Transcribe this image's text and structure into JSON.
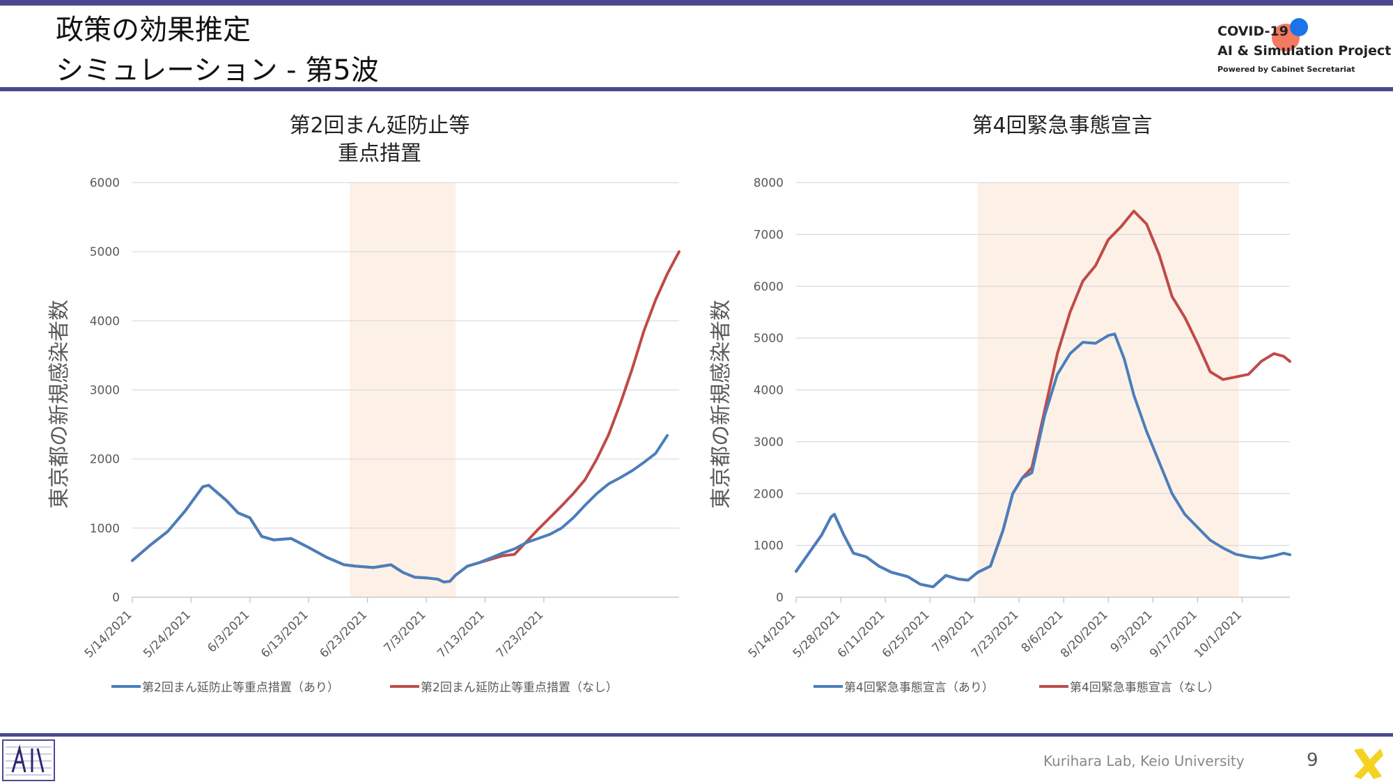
{
  "page": {
    "title_line1": "政策の効果推定",
    "title_line2": "シミュレーション - 第5波",
    "brand_line1": "COVID-19",
    "brand_line2": "AI & Simulation Project",
    "brand_line3": "Powered by Cabinet Secretariat",
    "footer": "Kurihara Lab, Keio University",
    "page_number": "9",
    "colors": {
      "accent_bar": "#4a4890",
      "with": "#4a7ebb",
      "without": "#be4b48",
      "highlight": "#fdf0e6"
    }
  },
  "chart_data": [
    {
      "type": "line",
      "title": [
        "第2回まん延防止等",
        "重点措置"
      ],
      "ylabel": "東京都の新規感染者数",
      "ylim": [
        0,
        6000
      ],
      "yticks": [
        0,
        1000,
        2000,
        3000,
        4000,
        5000,
        6000
      ],
      "x_start": "5/14/2021",
      "x_ticks": [
        "5/14/2021",
        "5/24/2021",
        "6/3/2021",
        "6/13/2021",
        "6/23/2021",
        "7/3/2021",
        "7/13/2021",
        "7/23/2021"
      ],
      "highlight": [
        "6/20/2021",
        "7/8/2021"
      ],
      "grid": true,
      "legend": "bottom",
      "series": [
        {
          "name": "第2回まん延防止等重点措置（あり）",
          "color": "#4a7ebb",
          "points": [
            [
              "5/14/2021",
              530
            ],
            [
              "5/17/2021",
              750
            ],
            [
              "5/20/2021",
              950
            ],
            [
              "5/23/2021",
              1250
            ],
            [
              "5/26/2021",
              1600
            ],
            [
              "5/27/2021",
              1620
            ],
            [
              "5/30/2021",
              1400
            ],
            [
              "6/1/2021",
              1220
            ],
            [
              "6/3/2021",
              1150
            ],
            [
              "6/5/2021",
              880
            ],
            [
              "6/7/2021",
              830
            ],
            [
              "6/10/2021",
              850
            ],
            [
              "6/13/2021",
              720
            ],
            [
              "6/16/2021",
              580
            ],
            [
              "6/19/2021",
              470
            ],
            [
              "6/21/2021",
              450
            ],
            [
              "6/24/2021",
              430
            ],
            [
              "6/27/2021",
              470
            ],
            [
              "6/29/2021",
              360
            ],
            [
              "7/1/2021",
              290
            ],
            [
              "7/3/2021",
              280
            ],
            [
              "7/5/2021",
              260
            ],
            [
              "7/6/2021",
              220
            ],
            [
              "7/7/2021",
              230
            ],
            [
              "7/8/2021",
              320
            ],
            [
              "7/10/2021",
              450
            ],
            [
              "7/12/2021",
              500
            ],
            [
              "7/14/2021",
              570
            ],
            [
              "7/16/2021",
              640
            ],
            [
              "7/18/2021",
              700
            ],
            [
              "7/20/2021",
              790
            ],
            [
              "7/22/2021",
              850
            ],
            [
              "7/24/2021",
              910
            ],
            [
              "7/26/2021",
              1000
            ],
            [
              "7/28/2021",
              1150
            ],
            [
              "7/30/2021",
              1330
            ],
            [
              "8/1/2021",
              1500
            ],
            [
              "8/3/2021",
              1640
            ],
            [
              "8/5/2021",
              1730
            ],
            [
              "8/7/2021",
              1830
            ],
            [
              "8/9/2021",
              1950
            ],
            [
              "8/11/2021",
              2080
            ],
            [
              "8/13/2021",
              2340
            ]
          ]
        },
        {
          "name": "第2回まん延防止等重点措置（なし）",
          "color": "#be4b48",
          "points": [
            [
              "5/14/2021",
              530
            ],
            [
              "5/17/2021",
              750
            ],
            [
              "5/20/2021",
              950
            ],
            [
              "5/23/2021",
              1250
            ],
            [
              "5/26/2021",
              1600
            ],
            [
              "5/27/2021",
              1620
            ],
            [
              "5/30/2021",
              1400
            ],
            [
              "6/1/2021",
              1220
            ],
            [
              "6/3/2021",
              1150
            ],
            [
              "6/5/2021",
              880
            ],
            [
              "6/7/2021",
              830
            ],
            [
              "6/10/2021",
              850
            ],
            [
              "6/13/2021",
              720
            ],
            [
              "6/16/2021",
              580
            ],
            [
              "6/19/2021",
              470
            ],
            [
              "6/21/2021",
              450
            ],
            [
              "6/24/2021",
              430
            ],
            [
              "6/27/2021",
              470
            ],
            [
              "6/29/2021",
              360
            ],
            [
              "7/1/2021",
              290
            ],
            [
              "7/3/2021",
              280
            ],
            [
              "7/5/2021",
              260
            ],
            [
              "7/6/2021",
              220
            ],
            [
              "7/7/2021",
              230
            ],
            [
              "7/8/2021",
              320
            ],
            [
              "7/10/2021",
              450
            ],
            [
              "7/12/2021",
              500
            ],
            [
              "7/14/2021",
              550
            ],
            [
              "7/16/2021",
              600
            ],
            [
              "7/18/2021",
              620
            ],
            [
              "7/20/2021",
              800
            ],
            [
              "7/22/2021",
              980
            ],
            [
              "7/24/2021",
              1150
            ],
            [
              "7/26/2021",
              1320
            ],
            [
              "7/28/2021",
              1500
            ],
            [
              "7/30/2021",
              1700
            ],
            [
              "8/1/2021",
              2000
            ],
            [
              "8/3/2021",
              2350
            ],
            [
              "8/5/2021",
              2800
            ],
            [
              "8/7/2021",
              3300
            ],
            [
              "8/9/2021",
              3850
            ],
            [
              "8/11/2021",
              4300
            ],
            [
              "8/13/2021",
              4680
            ],
            [
              "8/15/2021",
              5000
            ]
          ]
        }
      ]
    },
    {
      "type": "line",
      "title": [
        "第4回緊急事態宣言"
      ],
      "ylabel": "東京都の新規感染者数",
      "ylim": [
        0,
        8000
      ],
      "yticks": [
        0,
        1000,
        2000,
        3000,
        4000,
        5000,
        6000,
        7000,
        8000
      ],
      "x_start": "5/14/2021",
      "x_ticks": [
        "5/14/2021",
        "5/28/2021",
        "6/11/2021",
        "6/25/2021",
        "7/9/2021",
        "7/23/2021",
        "8/6/2021",
        "8/20/2021",
        "9/3/2021",
        "9/17/2021",
        "10/1/2021"
      ],
      "highlight": [
        "7/10/2021",
        "9/30/2021"
      ],
      "grid": true,
      "legend": "bottom",
      "series": [
        {
          "name": "第4回緊急事態宣言（あり）",
          "color": "#4a7ebb",
          "points": [
            [
              "5/14/2021",
              500
            ],
            [
              "5/18/2021",
              850
            ],
            [
              "5/22/2021",
              1200
            ],
            [
              "5/25/2021",
              1550
            ],
            [
              "5/26/2021",
              1600
            ],
            [
              "5/29/2021",
              1200
            ],
            [
              "6/1/2021",
              850
            ],
            [
              "6/5/2021",
              780
            ],
            [
              "6/9/2021",
              600
            ],
            [
              "6/13/2021",
              480
            ],
            [
              "6/18/2021",
              400
            ],
            [
              "6/22/2021",
              250
            ],
            [
              "6/26/2021",
              200
            ],
            [
              "6/30/2021",
              420
            ],
            [
              "7/4/2021",
              350
            ],
            [
              "7/7/2021",
              330
            ],
            [
              "7/10/2021",
              480
            ],
            [
              "7/14/2021",
              600
            ],
            [
              "7/18/2021",
              1300
            ],
            [
              "7/21/2021",
              2000
            ],
            [
              "7/24/2021",
              2300
            ],
            [
              "7/27/2021",
              2400
            ],
            [
              "7/31/2021",
              3500
            ],
            [
              "8/4/2021",
              4300
            ],
            [
              "8/8/2021",
              4700
            ],
            [
              "8/12/2021",
              4920
            ],
            [
              "8/16/2021",
              4900
            ],
            [
              "8/20/2021",
              5050
            ],
            [
              "8/22/2021",
              5080
            ],
            [
              "8/25/2021",
              4600
            ],
            [
              "8/28/2021",
              3900
            ],
            [
              "9/1/2021",
              3200
            ],
            [
              "9/5/2021",
              2600
            ],
            [
              "9/9/2021",
              2000
            ],
            [
              "9/13/2021",
              1600
            ],
            [
              "9/17/2021",
              1350
            ],
            [
              "9/21/2021",
              1100
            ],
            [
              "9/25/2021",
              950
            ],
            [
              "9/29/2021",
              830
            ],
            [
              "10/3/2021",
              780
            ],
            [
              "10/7/2021",
              750
            ],
            [
              "10/11/2021",
              800
            ],
            [
              "10/14/2021",
              850
            ],
            [
              "10/16/2021",
              820
            ]
          ]
        },
        {
          "name": "第4回緊急事態宣言（なし）",
          "color": "#be4b48",
          "points": [
            [
              "5/14/2021",
              500
            ],
            [
              "5/18/2021",
              850
            ],
            [
              "5/22/2021",
              1200
            ],
            [
              "5/25/2021",
              1550
            ],
            [
              "5/26/2021",
              1600
            ],
            [
              "5/29/2021",
              1200
            ],
            [
              "6/1/2021",
              850
            ],
            [
              "6/5/2021",
              780
            ],
            [
              "6/9/2021",
              600
            ],
            [
              "6/13/2021",
              480
            ],
            [
              "6/18/2021",
              400
            ],
            [
              "6/22/2021",
              250
            ],
            [
              "6/26/2021",
              200
            ],
            [
              "6/30/2021",
              420
            ],
            [
              "7/4/2021",
              350
            ],
            [
              "7/7/2021",
              330
            ],
            [
              "7/10/2021",
              480
            ],
            [
              "7/14/2021",
              600
            ],
            [
              "7/18/2021",
              1300
            ],
            [
              "7/21/2021",
              2000
            ],
            [
              "7/24/2021",
              2300
            ],
            [
              "7/27/2021",
              2500
            ],
            [
              "7/31/2021",
              3600
            ],
            [
              "8/4/2021",
              4700
            ],
            [
              "8/8/2021",
              5500
            ],
            [
              "8/12/2021",
              6100
            ],
            [
              "8/16/2021",
              6400
            ],
            [
              "8/20/2021",
              6900
            ],
            [
              "8/24/2021",
              7150
            ],
            [
              "8/28/2021",
              7450
            ],
            [
              "9/1/2021",
              7200
            ],
            [
              "9/5/2021",
              6600
            ],
            [
              "9/9/2021",
              5800
            ],
            [
              "9/13/2021",
              5400
            ],
            [
              "9/17/2021",
              4900
            ],
            [
              "9/21/2021",
              4350
            ],
            [
              "9/25/2021",
              4200
            ],
            [
              "9/29/2021",
              4250
            ],
            [
              "10/3/2021",
              4300
            ],
            [
              "10/7/2021",
              4550
            ],
            [
              "10/11/2021",
              4700
            ],
            [
              "10/14/2021",
              4650
            ],
            [
              "10/16/2021",
              4550
            ]
          ]
        }
      ]
    }
  ]
}
